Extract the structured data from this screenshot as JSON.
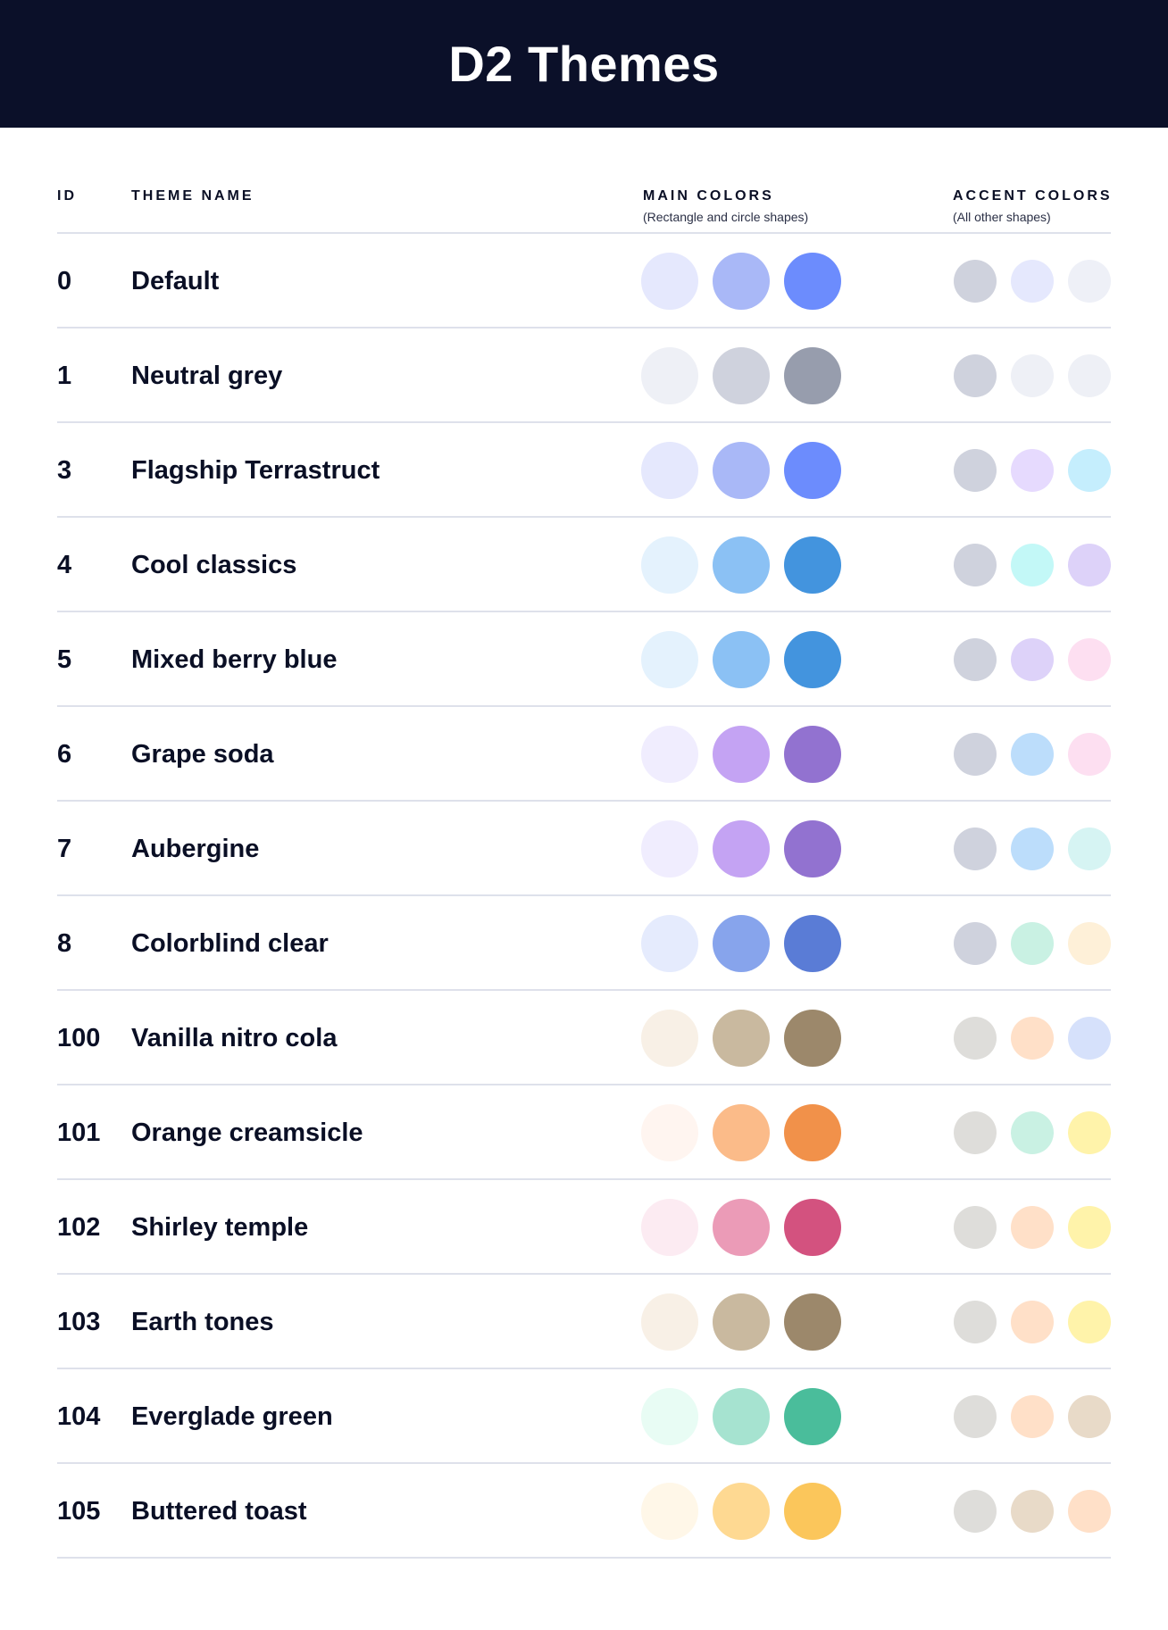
{
  "title": "D2 Themes",
  "columns": {
    "id": "ID",
    "name": "THEME NAME",
    "main": "MAIN COLORS",
    "main_sub": "(Rectangle and circle shapes)",
    "accent": "ACCENT COLORS",
    "accent_sub": "(All other shapes)"
  },
  "themes": [
    {
      "id": "0",
      "name": "Default",
      "main": [
        "#E5E8FD",
        "#A9B8F7",
        "#6C8CFD"
      ],
      "accent": [
        "#CFD2DD",
        "#E5E8FD",
        "#EEF0F7"
      ]
    },
    {
      "id": "1",
      "name": "Neutral grey",
      "main": [
        "#EEF0F6",
        "#CFD2DD",
        "#979DAD"
      ],
      "accent": [
        "#CFD2DD",
        "#EEF0F6",
        "#EEF0F6"
      ]
    },
    {
      "id": "3",
      "name": "Flagship Terrastruct",
      "main": [
        "#E5E8FD",
        "#A9B8F7",
        "#6C8CFD"
      ],
      "accent": [
        "#CFD2DD",
        "#E6DAFE",
        "#C5EEFD"
      ]
    },
    {
      "id": "4",
      "name": "Cool classics",
      "main": [
        "#E4F2FD",
        "#8BC1F4",
        "#4394DE"
      ],
      "accent": [
        "#CFD2DD",
        "#C3F8F7",
        "#DDD2F9"
      ]
    },
    {
      "id": "5",
      "name": "Mixed berry blue",
      "main": [
        "#E4F2FD",
        "#8BC1F4",
        "#4394DE"
      ],
      "accent": [
        "#CFD2DD",
        "#DDD2F9",
        "#FDDFF1"
      ]
    },
    {
      "id": "6",
      "name": "Grape soda",
      "main": [
        "#F0EDFE",
        "#C4A3F3",
        "#9272D0"
      ],
      "accent": [
        "#CFD2DD",
        "#BCDDFB",
        "#FDDFF1"
      ]
    },
    {
      "id": "7",
      "name": "Aubergine",
      "main": [
        "#F0EDFE",
        "#C4A3F3",
        "#9272D0"
      ],
      "accent": [
        "#CFD2DD",
        "#BCDDFB",
        "#D6F4F3"
      ]
    },
    {
      "id": "8",
      "name": "Colorblind clear",
      "main": [
        "#E5EBFD",
        "#87A4EC",
        "#5A7CD6"
      ],
      "accent": [
        "#CFD2DD",
        "#C9F1E3",
        "#FEF0D8"
      ]
    },
    {
      "id": "100",
      "name": "Vanilla nitro cola",
      "main": [
        "#F8F0E6",
        "#C9B99F",
        "#9C886B"
      ],
      "accent": [
        "#DEDDDA",
        "#FFE0C8",
        "#D6E1FB"
      ]
    },
    {
      "id": "101",
      "name": "Orange creamsicle",
      "main": [
        "#FFF5F0",
        "#FBBB89",
        "#F1914A"
      ],
      "accent": [
        "#DEDDDA",
        "#C9F1E3",
        "#FFF3AA"
      ]
    },
    {
      "id": "102",
      "name": "Shirley temple",
      "main": [
        "#FCEBF2",
        "#EB9BB7",
        "#D3527F"
      ],
      "accent": [
        "#DEDDDA",
        "#FFE0C8",
        "#FFF3AA"
      ]
    },
    {
      "id": "103",
      "name": "Earth tones",
      "main": [
        "#F8F0E6",
        "#C9B99F",
        "#9C886B"
      ],
      "accent": [
        "#DEDDDA",
        "#FFE0C8",
        "#FFF3AA"
      ]
    },
    {
      "id": "104",
      "name": "Everglade green",
      "main": [
        "#E8FCF4",
        "#A6E3D0",
        "#4ABD9B"
      ],
      "accent": [
        "#DEDDDA",
        "#FFE0C8",
        "#E8DAC8"
      ]
    },
    {
      "id": "105",
      "name": "Buttered toast",
      "main": [
        "#FFF7E8",
        "#FED992",
        "#FBC65B"
      ],
      "accent": [
        "#DEDDDA",
        "#E8DAC8",
        "#FFE0C8"
      ]
    }
  ]
}
